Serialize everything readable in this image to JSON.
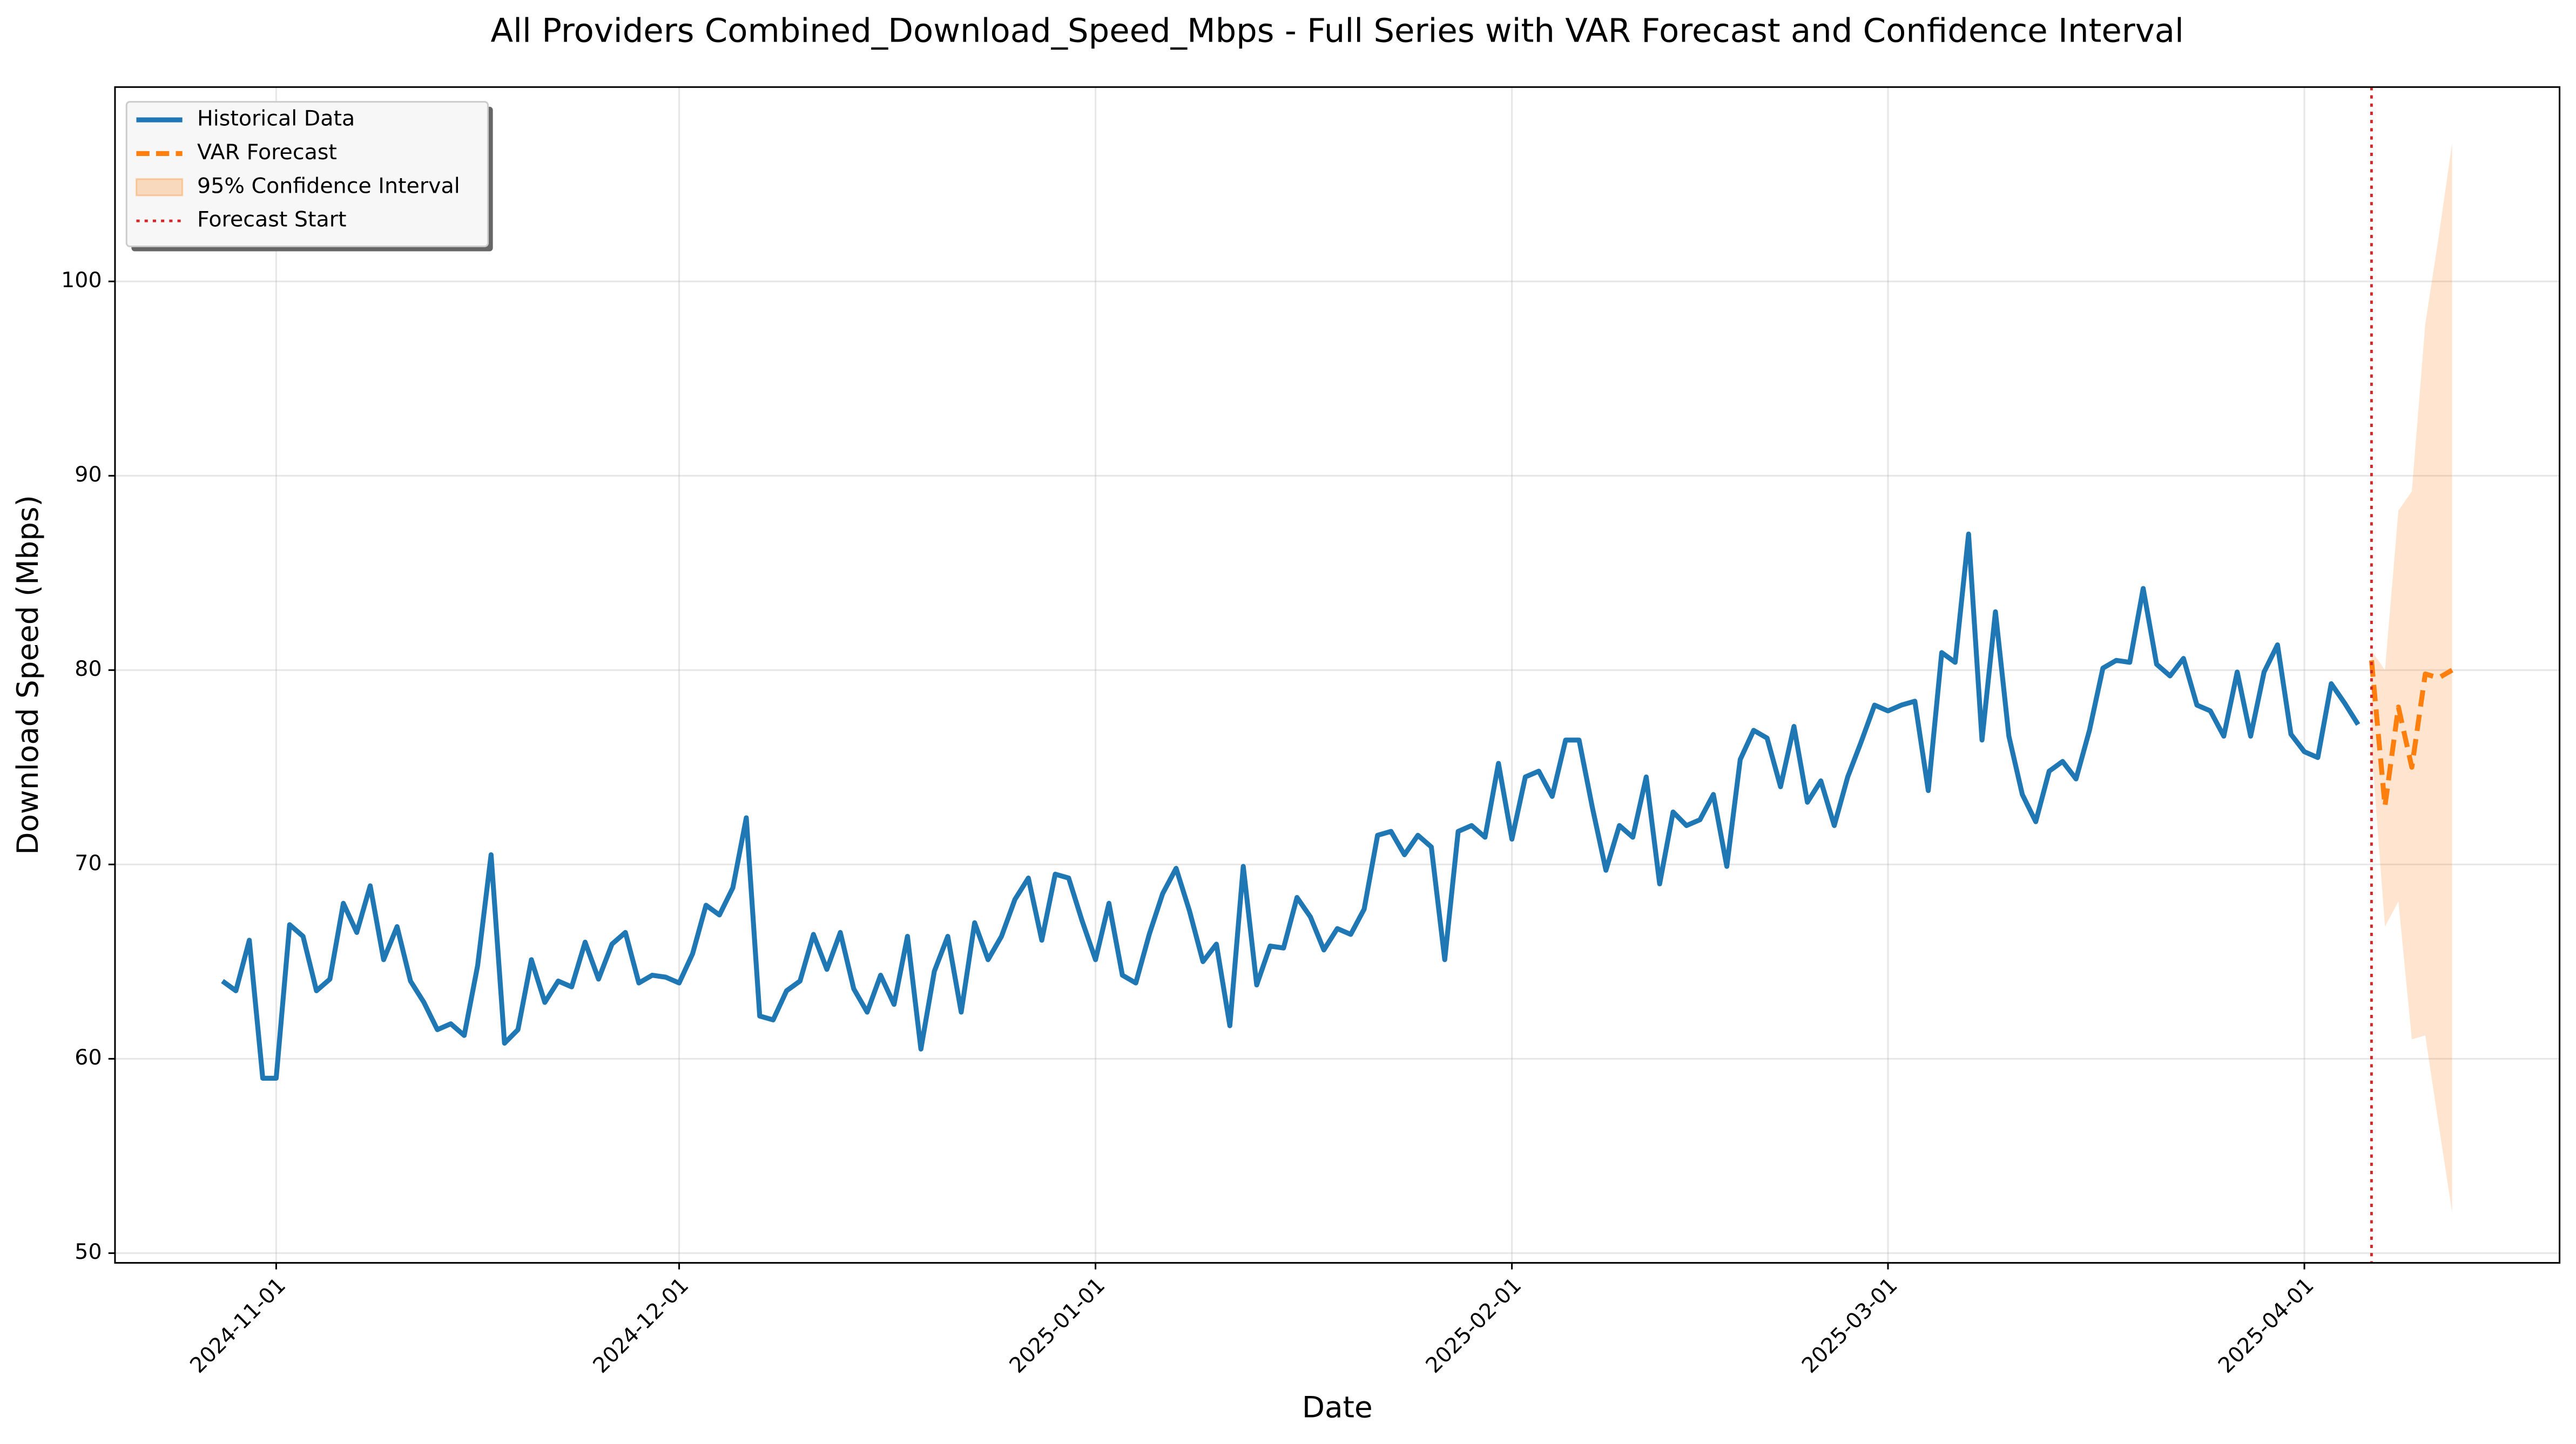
{
  "chart_data": {
    "type": "line",
    "title": "All Providers Combined_Download_Speed_Mbps - Full Series with VAR Forecast and Confidence Interval",
    "xlabel": "Date",
    "ylabel": "Download Speed (Mbps)",
    "xlim": [
      "2024-10-20",
      "2025-04-20"
    ],
    "xticks": [
      "2024-11-01",
      "2024-12-01",
      "2025-01-01",
      "2025-02-01",
      "2025-03-01",
      "2025-04-01"
    ],
    "ylim": [
      49.5,
      110
    ],
    "yticks": [
      50,
      60,
      70,
      80,
      90,
      100
    ],
    "grid": true,
    "legend": "upper left",
    "series": [
      {
        "name": "Historical Data",
        "color": "#1f77b4",
        "style": "solid",
        "x": [
          "2024-10-28",
          "2024-10-29",
          "2024-10-30",
          "2024-10-31",
          "2024-11-01",
          "2024-11-02",
          "2024-11-03",
          "2024-11-04",
          "2024-11-05",
          "2024-11-06",
          "2024-11-07",
          "2024-11-08",
          "2024-11-09",
          "2024-11-10",
          "2024-11-11",
          "2024-11-12",
          "2024-11-13",
          "2024-11-14",
          "2024-11-15",
          "2024-11-16",
          "2024-11-17",
          "2024-11-18",
          "2024-11-19",
          "2024-11-20",
          "2024-11-21",
          "2024-11-22",
          "2024-11-23",
          "2024-11-24",
          "2024-11-25",
          "2024-11-26",
          "2024-11-27",
          "2024-11-28",
          "2024-11-29",
          "2024-11-30",
          "2024-12-01",
          "2024-12-02",
          "2024-12-03",
          "2024-12-04",
          "2024-12-05",
          "2024-12-06",
          "2024-12-07",
          "2024-12-08",
          "2024-12-09",
          "2024-12-10",
          "2024-12-11",
          "2024-12-12",
          "2024-12-13",
          "2024-12-14",
          "2024-12-15",
          "2024-12-16",
          "2024-12-17",
          "2024-12-18",
          "2024-12-19",
          "2024-12-20",
          "2024-12-21",
          "2024-12-22",
          "2024-12-23",
          "2024-12-24",
          "2024-12-25",
          "2024-12-26",
          "2024-12-27",
          "2024-12-28",
          "2024-12-29",
          "2024-12-30",
          "2024-12-31",
          "2025-01-01",
          "2025-01-02",
          "2025-01-03",
          "2025-01-04",
          "2025-01-05",
          "2025-01-06",
          "2025-01-07",
          "2025-01-08",
          "2025-01-09",
          "2025-01-10",
          "2025-01-11",
          "2025-01-12",
          "2025-01-13",
          "2025-01-14",
          "2025-01-15",
          "2025-01-16",
          "2025-01-17",
          "2025-01-18",
          "2025-01-19",
          "2025-01-20",
          "2025-01-21",
          "2025-01-22",
          "2025-01-23",
          "2025-01-24",
          "2025-01-25",
          "2025-01-26",
          "2025-01-27",
          "2025-01-28",
          "2025-01-29",
          "2025-01-30",
          "2025-01-31",
          "2025-02-01",
          "2025-02-02",
          "2025-02-03",
          "2025-02-04",
          "2025-02-05",
          "2025-02-06",
          "2025-02-07",
          "2025-02-08",
          "2025-02-09",
          "2025-02-10",
          "2025-02-11",
          "2025-02-12",
          "2025-02-13",
          "2025-02-14",
          "2025-02-15",
          "2025-02-16",
          "2025-02-17",
          "2025-02-18",
          "2025-02-19",
          "2025-02-20",
          "2025-02-21",
          "2025-02-22",
          "2025-02-23",
          "2025-02-24",
          "2025-02-25",
          "2025-02-26",
          "2025-02-27",
          "2025-02-28",
          "2025-03-01",
          "2025-03-02",
          "2025-03-03",
          "2025-03-04",
          "2025-03-05",
          "2025-03-06",
          "2025-03-07",
          "2025-03-08",
          "2025-03-09",
          "2025-03-10",
          "2025-03-11",
          "2025-03-12",
          "2025-03-13",
          "2025-03-14",
          "2025-03-15",
          "2025-03-16",
          "2025-03-17",
          "2025-03-18",
          "2025-03-19",
          "2025-03-20",
          "2025-03-21",
          "2025-03-22",
          "2025-03-23",
          "2025-03-24",
          "2025-03-25",
          "2025-03-26",
          "2025-03-27",
          "2025-03-28",
          "2025-03-29",
          "2025-03-30",
          "2025-03-31",
          "2025-04-01",
          "2025-04-02",
          "2025-04-03",
          "2025-04-04",
          "2025-04-05"
        ],
        "values": [
          64.0,
          63.5,
          66.1,
          59.0,
          59.0,
          66.9,
          66.3,
          63.5,
          64.1,
          68.0,
          66.5,
          68.9,
          65.1,
          66.8,
          64.0,
          62.9,
          61.5,
          61.8,
          61.2,
          64.8,
          70.5,
          60.8,
          61.5,
          65.1,
          62.9,
          64.0,
          63.7,
          66.0,
          64.1,
          65.9,
          66.5,
          63.9,
          64.3,
          64.2,
          63.9,
          65.4,
          67.9,
          67.4,
          68.8,
          72.4,
          62.2,
          62.0,
          63.5,
          64.0,
          66.4,
          64.6,
          66.5,
          63.6,
          62.4,
          64.3,
          62.8,
          66.3,
          60.5,
          64.5,
          66.3,
          62.4,
          67.0,
          65.1,
          66.3,
          68.2,
          69.3,
          66.1,
          69.5,
          69.3,
          67.1,
          65.1,
          68.0,
          64.3,
          63.9,
          66.4,
          68.5,
          69.8,
          67.6,
          65.0,
          65.9,
          61.7,
          69.9,
          63.8,
          65.8,
          65.7,
          68.3,
          67.3,
          65.6,
          66.7,
          66.4,
          67.7,
          71.5,
          71.7,
          70.5,
          71.5,
          70.9,
          65.1,
          71.7,
          72.0,
          71.4,
          75.2,
          71.3,
          74.5,
          74.8,
          73.5,
          76.4,
          76.4,
          72.9,
          69.7,
          72.0,
          71.4,
          74.5,
          69.0,
          72.7,
          72.0,
          72.3,
          73.6,
          69.9,
          75.4,
          76.9,
          76.5,
          74.0,
          77.1,
          73.2,
          74.3,
          72.0,
          74.5,
          76.3,
          78.2,
          77.9,
          78.2,
          78.4,
          73.8,
          80.9,
          80.4,
          87.0,
          76.4,
          83.0,
          76.6,
          73.6,
          72.2,
          74.8,
          75.3,
          74.4,
          76.9,
          80.1,
          80.5,
          80.4,
          84.2,
          80.3,
          79.7,
          80.6,
          78.2,
          77.9,
          76.6,
          79.9,
          76.6,
          79.9,
          81.3,
          76.7,
          75.8,
          75.5,
          79.3,
          78.3,
          77.2
        ]
      },
      {
        "name": "VAR Forecast",
        "color": "#ff7f0e",
        "style": "dashed",
        "x": [
          "2025-04-06",
          "2025-04-07",
          "2025-04-08",
          "2025-04-09",
          "2025-04-10",
          "2025-04-11",
          "2025-04-12"
        ],
        "values": [
          80.5,
          73.0,
          78.1,
          75.0,
          79.8,
          79.6,
          80.0
        ]
      }
    ],
    "band": {
      "name": "95% Confidence Interval",
      "color": "#ff7f0e",
      "x": [
        "2025-04-06",
        "2025-04-07",
        "2025-04-08",
        "2025-04-09",
        "2025-04-10",
        "2025-04-11",
        "2025-04-12"
      ],
      "lower": [
        76.0,
        66.8,
        68.1,
        61.0,
        61.2,
        56.6,
        52.1
      ],
      "upper": [
        81.0,
        80.0,
        88.2,
        89.2,
        97.8,
        102.3,
        107.1
      ]
    },
    "vline": {
      "name": "Forecast Start",
      "color": "#d62728",
      "x": "2025-04-06"
    }
  }
}
